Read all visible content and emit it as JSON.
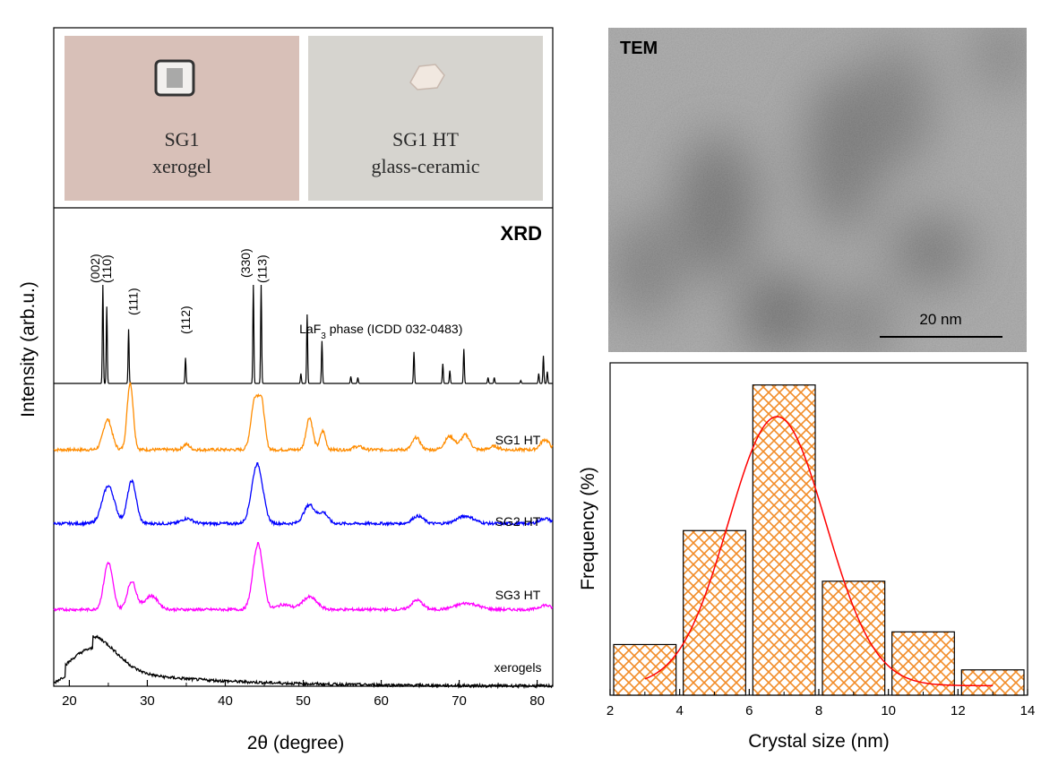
{
  "photos": {
    "left": {
      "line1": "SG1",
      "line2": "xerogel"
    },
    "right": {
      "line1": "SG1 HT",
      "line2": "glass-ceramic"
    }
  },
  "tem": {
    "title": "TEM",
    "scale_bar_label": "20 nm"
  },
  "chart_data": [
    {
      "type": "line",
      "title": "XRD",
      "xlabel": "2θ (degree)",
      "ylabel": "Intensity (arb.u.)",
      "xlim": [
        18,
        82
      ],
      "xticks": [
        20,
        30,
        40,
        50,
        60,
        70,
        80
      ],
      "reference": {
        "name": "LaF3 phase (ICDD 032-0483)",
        "peaks": [
          {
            "x": 24.3,
            "h": 1.0,
            "label": "(002)"
          },
          {
            "x": 24.8,
            "h": 0.78,
            "label": "(110)"
          },
          {
            "x": 27.6,
            "h": 0.55,
            "label": "(111)"
          },
          {
            "x": 34.9,
            "h": 0.26,
            "label": "(112)"
          },
          {
            "x": 43.6,
            "h": 1.0,
            "label": "(330)"
          },
          {
            "x": 44.6,
            "h": 1.0,
            "label": "(113)"
          },
          {
            "x": 49.7,
            "h": 0.1
          },
          {
            "x": 50.5,
            "h": 0.7
          },
          {
            "x": 52.4,
            "h": 0.43
          },
          {
            "x": 56.1,
            "h": 0.07
          },
          {
            "x": 57.0,
            "h": 0.06
          },
          {
            "x": 64.2,
            "h": 0.32
          },
          {
            "x": 67.9,
            "h": 0.2
          },
          {
            "x": 68.8,
            "h": 0.13
          },
          {
            "x": 70.6,
            "h": 0.35
          },
          {
            "x": 73.7,
            "h": 0.06
          },
          {
            "x": 74.5,
            "h": 0.06
          },
          {
            "x": 77.9,
            "h": 0.03
          },
          {
            "x": 80.2,
            "h": 0.1
          },
          {
            "x": 80.8,
            "h": 0.28
          },
          {
            "x": 81.3,
            "h": 0.12
          }
        ]
      },
      "series": [
        {
          "name": "SG1 HT",
          "color": "#ff8c00",
          "peaks": [
            [
              24.9,
              0.45,
              0.8
            ],
            [
              27.8,
              1.0,
              0.55
            ],
            [
              35.0,
              0.08,
              0.6
            ],
            [
              43.8,
              0.75,
              0.7
            ],
            [
              44.7,
              0.62,
              0.55
            ],
            [
              50.8,
              0.48,
              0.6
            ],
            [
              52.5,
              0.28,
              0.5
            ],
            [
              57.0,
              0.05,
              0.8
            ],
            [
              64.5,
              0.18,
              0.7
            ],
            [
              68.8,
              0.2,
              0.9
            ],
            [
              70.8,
              0.22,
              0.8
            ],
            [
              74.5,
              0.05,
              0.8
            ],
            [
              81.0,
              0.15,
              0.8
            ]
          ]
        },
        {
          "name": "SG2 HT",
          "color": "#0000ff",
          "peaks": [
            [
              25.0,
              0.6,
              1.1
            ],
            [
              28.0,
              0.68,
              0.8
            ],
            [
              35.1,
              0.08,
              1.0
            ],
            [
              44.1,
              0.95,
              1.0
            ],
            [
              50.8,
              0.3,
              1.0
            ],
            [
              52.6,
              0.17,
              0.8
            ],
            [
              64.7,
              0.12,
              1.0
            ],
            [
              70.8,
              0.12,
              1.5
            ],
            [
              81.0,
              0.08,
              1.0
            ]
          ]
        },
        {
          "name": "SG3 HT",
          "color": "#ff00ff",
          "peaks": [
            [
              25.0,
              0.75,
              0.8
            ],
            [
              28.0,
              0.45,
              0.8
            ],
            [
              30.5,
              0.22,
              1.2
            ],
            [
              44.2,
              1.05,
              0.9
            ],
            [
              50.8,
              0.2,
              1.3
            ],
            [
              47.5,
              0.08,
              1.2
            ],
            [
              64.6,
              0.15,
              1.0
            ],
            [
              71.0,
              0.1,
              2.0
            ],
            [
              81.0,
              0.07,
              1.0
            ]
          ]
        },
        {
          "name": "xerogels",
          "color": "#000000",
          "broad": true
        }
      ]
    },
    {
      "type": "bar",
      "xlabel": "Crystal size (nm)",
      "ylabel": "Frequency (%)",
      "xlim": [
        2,
        14
      ],
      "xticks": [
        2,
        4,
        6,
        8,
        10,
        12,
        14
      ],
      "ylim": [
        0,
        10.5
      ],
      "bins": [
        {
          "from": 2,
          "to": 4,
          "value": 1.6
        },
        {
          "from": 4,
          "to": 6,
          "value": 5.2
        },
        {
          "from": 6,
          "to": 8,
          "value": 9.8
        },
        {
          "from": 8,
          "to": 10,
          "value": 3.6
        },
        {
          "from": 10,
          "to": 12,
          "value": 2.0
        },
        {
          "from": 12,
          "to": 14,
          "value": 0.8
        }
      ],
      "fit": {
        "type": "gaussian",
        "center": 6.8,
        "amplitude": 8.5,
        "sigma": 1.4,
        "baseline": 0.3,
        "range": [
          3,
          13
        ],
        "color": "#ff0000"
      },
      "bar_color": "#f28c28"
    }
  ]
}
